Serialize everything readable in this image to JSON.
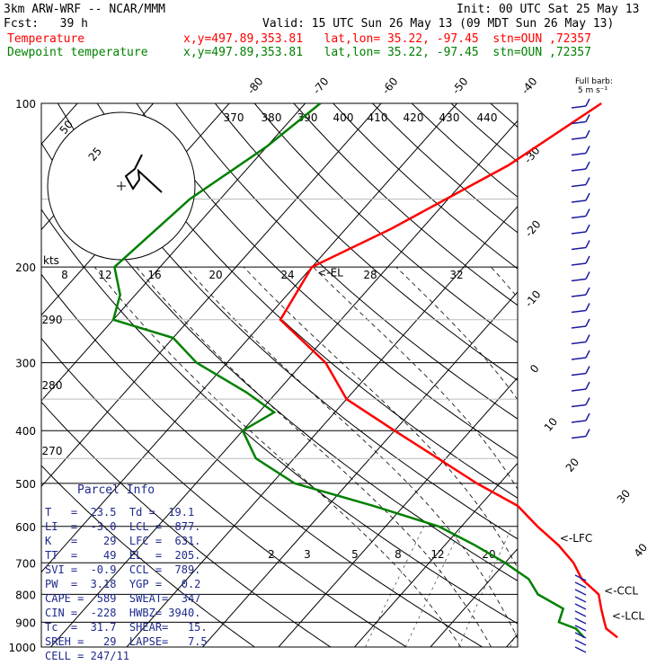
{
  "header": {
    "line1_left": "3km ARW-WRF -- NCAR/MMM",
    "line1_right": "Init: 00 UTC Sat 25 May 13",
    "line2_left": "Fcst:   39 h",
    "line2_right": "Valid: 15 UTC Sun 26 May 13 (09 MDT Sun 26 May 13)",
    "temp_label": "Temperature",
    "temp_info": "x,y=497.89,353.81   lat,lon= 35.22, -97.45  stn=OUN ,72357",
    "dew_label": "Dewpoint temperature",
    "dew_info": "x,y=497.89,353.81   lat,lon= 35.22, -97.45  stn=OUN ,72357"
  },
  "colors": {
    "temperature": "#ff0000",
    "dewpoint": "#008000",
    "parcel_text": "#1e2a8c",
    "barbs": "#1a1aa0"
  },
  "chart_data": {
    "type": "line",
    "pressure_levels": [
      100,
      200,
      300,
      400,
      500,
      600,
      700,
      800,
      900,
      1000
    ],
    "isotherm_labels": [
      "-80",
      "-70",
      "-60",
      "-50",
      "-40",
      "-30",
      "-20",
      "-10",
      "0",
      "10",
      "20",
      "30",
      "40"
    ],
    "theta_labels": [
      "370",
      "380",
      "390",
      "400",
      "410",
      "420",
      "430",
      "440"
    ],
    "theta_left_labels": [
      "290",
      "280",
      "270"
    ],
    "hodo_speed_labels": [
      "8",
      "12",
      "16",
      "20",
      "24",
      "28",
      "32"
    ],
    "mixing_ratio_labels": [
      "2",
      "3",
      "5",
      "8",
      "12",
      "20"
    ],
    "hodo_ring_labels": [
      "25",
      "50"
    ],
    "hodo_units": "kts",
    "barb_legend": "Full barb:\n 5 m s⁻¹",
    "level_markers": [
      {
        "label": "<-EL",
        "p": 205
      },
      {
        "label": "<-LFC",
        "p": 631
      },
      {
        "label": "<-CCL",
        "p": 789
      },
      {
        "label": "<-LCL",
        "p": 877
      }
    ],
    "series": [
      {
        "name": "Temperature",
        "points": [
          [
            -41,
            100
          ],
          [
            -46,
            130
          ],
          [
            -54,
            170
          ],
          [
            -60,
            200
          ],
          [
            -58,
            250
          ],
          [
            -47,
            300
          ],
          [
            -40,
            350
          ],
          [
            -30,
            400
          ],
          [
            -21,
            450
          ],
          [
            -13,
            500
          ],
          [
            -5,
            550
          ],
          [
            0,
            600
          ],
          [
            5,
            650
          ],
          [
            9,
            700
          ],
          [
            12,
            750
          ],
          [
            16,
            800
          ],
          [
            18,
            850
          ],
          [
            20,
            900
          ],
          [
            21,
            925
          ],
          [
            23.5,
            960
          ]
        ]
      },
      {
        "name": "Dewpoint temperature",
        "points": [
          [
            -78,
            100
          ],
          [
            -80,
            120
          ],
          [
            -84,
            150
          ],
          [
            -86,
            200
          ],
          [
            -82,
            225
          ],
          [
            -80,
            250
          ],
          [
            -70,
            270
          ],
          [
            -64,
            300
          ],
          [
            -54,
            340
          ],
          [
            -48,
            370
          ],
          [
            -50,
            400
          ],
          [
            -45,
            450
          ],
          [
            -37,
            500
          ],
          [
            -24,
            550
          ],
          [
            -13,
            600
          ],
          [
            -6,
            650
          ],
          [
            0,
            700
          ],
          [
            5,
            750
          ],
          [
            8,
            800
          ],
          [
            13,
            850
          ],
          [
            14,
            900
          ],
          [
            17,
            925
          ],
          [
            19.1,
            960
          ]
        ]
      }
    ]
  },
  "parcel_info": {
    "title": "Parcel Info",
    "rows": [
      "T   =  23.5  Td =  19.1",
      "LI  =  -3.0  LCL =  877.",
      "K   =    29  LFC =  631.",
      "TT  =    49  EL  =  205.",
      "SVI =  -0.9  CCL =  789.",
      "PW  =  3.18  YGP =   0.2",
      "CAPE =  589  SWEAT=  347",
      "CIN =  -228  HWBZ= 3940.",
      "Tc  =  31.7  SHEAR=   15.",
      "SREH =   29  LAPSE=   7.5",
      "CELL = 247/11"
    ]
  }
}
